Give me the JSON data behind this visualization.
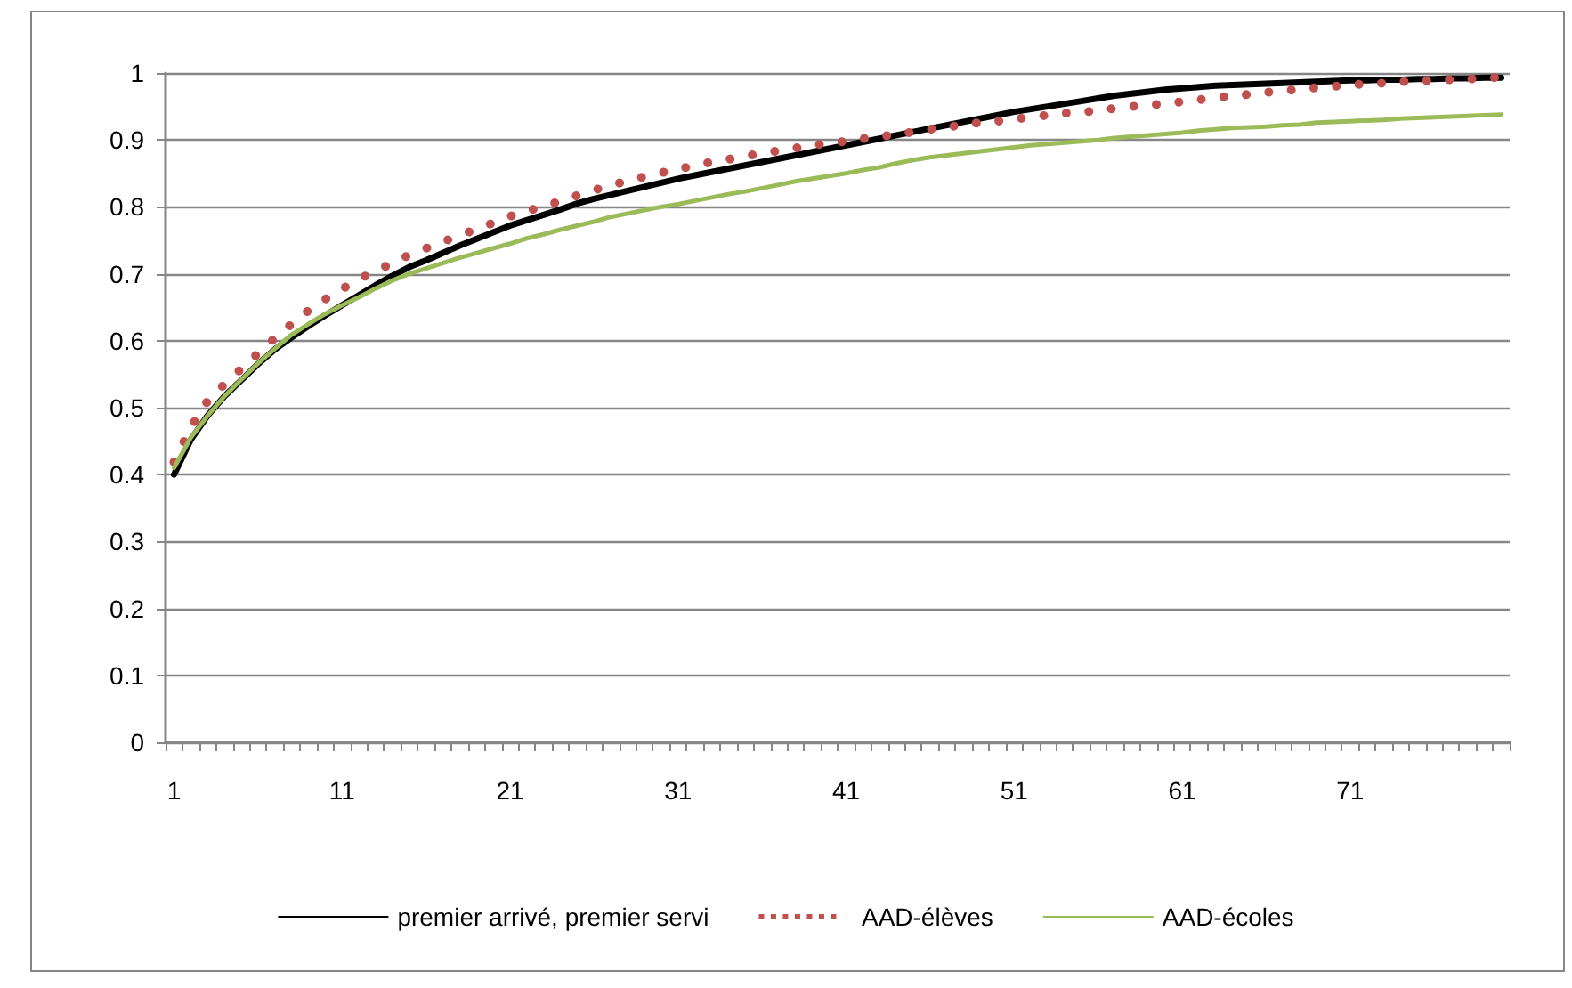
{
  "chart_data": {
    "type": "line",
    "categories": [
      "1",
      null,
      null,
      null,
      null,
      null,
      null,
      null,
      null,
      null,
      "11",
      null,
      null,
      null,
      null,
      null,
      null,
      null,
      null,
      null,
      "21",
      null,
      null,
      null,
      null,
      null,
      null,
      null,
      null,
      null,
      "31",
      null,
      null,
      null,
      null,
      null,
      null,
      null,
      null,
      null,
      "41",
      null,
      null,
      null,
      null,
      null,
      null,
      null,
      null,
      null,
      "51",
      null,
      null,
      null,
      null,
      null,
      null,
      null,
      null,
      null,
      "61",
      null,
      null,
      null,
      null,
      null,
      null,
      null,
      null,
      null,
      "71",
      null,
      null,
      null,
      null,
      null,
      null,
      null,
      null,
      null
    ],
    "series": [
      {
        "name": "premier arrivé, premier servi",
        "color": "#000000",
        "line_style": "solid",
        "values": [
          0.4,
          0.452,
          0.488,
          0.517,
          0.541,
          0.565,
          0.587,
          0.605,
          0.622,
          0.638,
          0.653,
          0.668,
          0.683,
          0.697,
          0.71,
          0.72,
          0.731,
          0.742,
          0.752,
          0.762,
          0.772,
          0.78,
          0.788,
          0.796,
          0.805,
          0.812,
          0.818,
          0.824,
          0.83,
          0.836,
          0.842,
          0.847,
          0.852,
          0.857,
          0.862,
          0.867,
          0.872,
          0.877,
          0.882,
          0.887,
          0.892,
          0.897,
          0.902,
          0.907,
          0.912,
          0.917,
          0.922,
          0.927,
          0.932,
          0.937,
          0.942,
          0.946,
          0.95,
          0.954,
          0.958,
          0.962,
          0.966,
          0.969,
          0.972,
          0.975,
          0.977,
          0.979,
          0.981,
          0.982,
          0.983,
          0.984,
          0.985,
          0.986,
          0.987,
          0.988,
          0.989,
          0.989,
          0.99,
          0.99,
          0.991,
          0.991,
          0.992,
          0.992,
          0.993,
          0.993
        ]
      },
      {
        "name": "AAD-élèves",
        "color": "#c0504d",
        "line_style": "dotted",
        "values": [
          0.419,
          0.47,
          0.51,
          0.535,
          0.558,
          0.581,
          0.604,
          0.625,
          0.645,
          0.662,
          0.677,
          0.692,
          0.704,
          0.716,
          0.728,
          0.738,
          0.748,
          0.757,
          0.767,
          0.776,
          0.786,
          0.794,
          0.8,
          0.809,
          0.817,
          0.825,
          0.832,
          0.839,
          0.845,
          0.851,
          0.856,
          0.862,
          0.867,
          0.871,
          0.876,
          0.88,
          0.884,
          0.888,
          0.892,
          0.895,
          0.898,
          0.902,
          0.905,
          0.908,
          0.912,
          0.916,
          0.919,
          0.923,
          0.926,
          0.928,
          0.931,
          0.934,
          0.937,
          0.94,
          0.941,
          0.944,
          0.947,
          0.95,
          0.952,
          0.954,
          0.957,
          0.96,
          0.963,
          0.966,
          0.968,
          0.971,
          0.973,
          0.976,
          0.978,
          0.98,
          0.982,
          0.984,
          0.985,
          0.987,
          0.988,
          0.989,
          0.99,
          0.991,
          0.992,
          0.994
        ]
      },
      {
        "name": "AAD-écoles",
        "color": "#9bbb59",
        "line_style": "solid",
        "values": [
          0.41,
          0.455,
          0.488,
          0.517,
          0.542,
          0.566,
          0.588,
          0.609,
          0.625,
          0.64,
          0.653,
          0.665,
          0.678,
          0.69,
          0.7,
          0.708,
          0.716,
          0.724,
          0.731,
          0.738,
          0.745,
          0.753,
          0.759,
          0.766,
          0.772,
          0.778,
          0.785,
          0.79,
          0.795,
          0.8,
          0.804,
          0.809,
          0.814,
          0.819,
          0.823,
          0.828,
          0.833,
          0.838,
          0.842,
          0.846,
          0.85,
          0.855,
          0.859,
          0.865,
          0.87,
          0.874,
          0.877,
          0.88,
          0.883,
          0.886,
          0.889,
          0.892,
          0.894,
          0.896,
          0.898,
          0.9,
          0.903,
          0.905,
          0.907,
          0.909,
          0.911,
          0.914,
          0.916,
          0.918,
          0.919,
          0.92,
          0.922,
          0.923,
          0.926,
          0.927,
          0.928,
          0.929,
          0.93,
          0.932,
          0.933,
          0.934,
          0.935,
          0.936,
          0.937,
          0.938
        ]
      }
    ],
    "ylim": [
      0,
      1
    ],
    "yticks": [
      0,
      0.1,
      0.2,
      0.3,
      0.4,
      0.5,
      0.6,
      0.7,
      0.8,
      0.9,
      1
    ],
    "grid": "y",
    "legend": "bottom",
    "marker": "none"
  }
}
